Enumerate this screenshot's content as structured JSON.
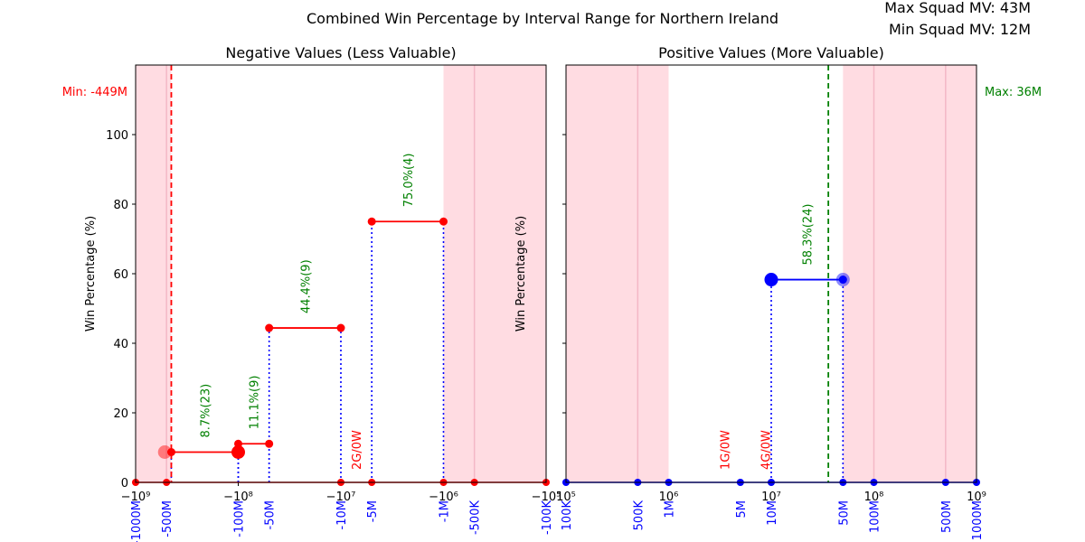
{
  "figure": {
    "title": "Combined Win Percentage by Interval Range for Northern Ireland",
    "max_mv_label": "Max Squad MV: 43M",
    "min_mv_label": "Min Squad MV: 12M"
  },
  "colors": {
    "negative": "#ff0000",
    "positive": "#0000ff",
    "annotation": "#008000",
    "no_win": "#ff0000",
    "shade": "#ffc0cb",
    "tick_label": "#0000ff"
  },
  "chart_data": [
    {
      "type": "line",
      "panel": "negative",
      "title": "Negative Values (Less Valuable)",
      "xscale": "symlog-negative",
      "ylabel": "Win Percentage (%)",
      "ylim": [
        0,
        120
      ],
      "yticks": [
        0,
        20,
        40,
        60,
        80,
        100
      ],
      "xticks": [
        {
          "label": "−10⁹",
          "value": -1000000000
        },
        {
          "label": "−10⁸",
          "value": -100000000
        },
        {
          "label": "−10⁷",
          "value": -10000000
        },
        {
          "label": "−10⁶",
          "value": -1000000
        },
        {
          "label": "−10⁵",
          "value": -100000
        }
      ],
      "interval_labels": [
        {
          "label": "-1000M",
          "value": -1000000000
        },
        {
          "label": "-500M",
          "value": -500000000
        },
        {
          "label": "-100M",
          "value": -100000000
        },
        {
          "label": "-50M",
          "value": -50000000
        },
        {
          "label": "-10M",
          "value": -10000000
        },
        {
          "label": "-5M",
          "value": -5000000
        },
        {
          "label": "-1M",
          "value": -1000000
        },
        {
          "label": "-500K",
          "value": -500000
        },
        {
          "label": "-100K",
          "value": -100000
        }
      ],
      "shaded_ranges": [
        [
          -1000000000,
          -449000000
        ],
        [
          -1000000,
          -100000
        ]
      ],
      "reference_line": {
        "value": -449000000,
        "label": "Min: -449M",
        "style": "dashed"
      },
      "segments": [
        {
          "x0": -449000000,
          "x1": -100000000,
          "win_pct": 8.7,
          "label": "8.7%(23)"
        },
        {
          "x0": -100000000,
          "x1": -50000000,
          "win_pct": 11.1,
          "label": "11.1%(9)"
        },
        {
          "x0": -50000000,
          "x1": -10000000,
          "win_pct": 44.4,
          "label": "44.4%(9)"
        },
        {
          "x0": -5000000,
          "x1": -1000000,
          "win_pct": 75.0,
          "label": "75.0%(4)"
        }
      ],
      "zero_points": [
        -1000000000,
        -500000000,
        -10000000,
        -5000000,
        -1000000,
        -500000,
        -100000
      ],
      "no_win_labels": [
        {
          "x": -7100000,
          "label": "2G/0W"
        }
      ],
      "large_markers": [
        {
          "x": -100000000,
          "y": 8.7
        }
      ],
      "faded_markers": [
        {
          "x": -520000000,
          "y": 8.7
        }
      ]
    },
    {
      "type": "line",
      "panel": "positive",
      "title": "Positive Values (More Valuable)",
      "xscale": "log",
      "ylabel": "Win Percentage (%)",
      "ylim": [
        0,
        120
      ],
      "yticks": [
        0,
        20,
        40,
        60,
        80,
        100
      ],
      "xticks": [
        {
          "label": "10⁵",
          "value": 100000
        },
        {
          "label": "10⁶",
          "value": 1000000
        },
        {
          "label": "10⁷",
          "value": 10000000
        },
        {
          "label": "10⁸",
          "value": 100000000
        },
        {
          "label": "10⁹",
          "value": 1000000000
        }
      ],
      "interval_labels": [
        {
          "label": "100K",
          "value": 100000
        },
        {
          "label": "500K",
          "value": 500000
        },
        {
          "label": "1M",
          "value": 1000000
        },
        {
          "label": "5M",
          "value": 5000000
        },
        {
          "label": "10M",
          "value": 10000000
        },
        {
          "label": "50M",
          "value": 50000000
        },
        {
          "label": "100M",
          "value": 100000000
        },
        {
          "label": "500M",
          "value": 500000000
        },
        {
          "label": "1000M",
          "value": 1000000000
        }
      ],
      "shaded_ranges": [
        [
          100000,
          1000000
        ],
        [
          50000000,
          1000000000
        ]
      ],
      "reference_line": {
        "value": 36000000,
        "label": "Max: 36M",
        "style": "dashed"
      },
      "segments": [
        {
          "x0": 10000000,
          "x1": 50000000,
          "win_pct": 58.3,
          "label": "58.3%(24)"
        }
      ],
      "zero_points": [
        100000,
        500000,
        1000000,
        5000000,
        10000000,
        50000000,
        100000000,
        500000000,
        1000000000
      ],
      "no_win_labels": [
        {
          "x": 3500000,
          "label": "1G/0W"
        },
        {
          "x": 8800000,
          "label": "4G/0W"
        }
      ],
      "large_markers": [
        {
          "x": 10000000,
          "y": 58.3
        }
      ],
      "faded_markers": [
        {
          "x": 50000000,
          "y": 58.3
        }
      ]
    }
  ]
}
